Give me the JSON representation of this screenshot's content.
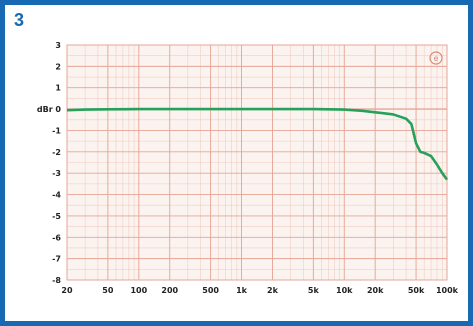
{
  "figure_number": "3",
  "colors": {
    "frame": "#1769b3",
    "plot_bg": "#fbf3ef",
    "grid_major": "#e6a595",
    "grid_minor": "#f1cdc3",
    "curve": "#26a05a"
  },
  "icon": "circled-logo-icon",
  "chart_data": {
    "type": "line",
    "title": "",
    "xlabel": "",
    "ylabel": "",
    "xscale": "log",
    "xlim": [
      20,
      100000
    ],
    "ylim": [
      -8,
      3
    ],
    "grid": true,
    "x_ticks": [
      20,
      50,
      100,
      200,
      500,
      1000,
      2000,
      5000,
      10000,
      20000,
      50000,
      100000
    ],
    "x_tick_labels": [
      "20",
      "50",
      "100",
      "200",
      "500",
      "1k",
      "2k",
      "5k",
      "10k",
      "20k",
      "50k",
      "100k"
    ],
    "y_ticks": [
      3,
      2,
      1,
      0,
      -1,
      -2,
      -3,
      -4,
      -5,
      -6,
      -7,
      -8
    ],
    "y_tick_labels": [
      "3",
      "2",
      "1",
      "dBr 0",
      "-1",
      "-2",
      "-3",
      "-4",
      "-5",
      "-6",
      "-7",
      "-8"
    ],
    "series": [
      {
        "x": [
          20,
          30,
          50,
          100,
          200,
          500,
          1000,
          2000,
          5000,
          10000,
          15000,
          20000,
          30000,
          40000,
          45000,
          50000,
          55000,
          60000,
          70000,
          80000,
          90000,
          100000
        ],
        "y": [
          -0.05,
          -0.02,
          -0.01,
          0,
          0,
          0,
          0,
          0,
          0,
          -0.02,
          -0.08,
          -0.15,
          -0.25,
          -0.45,
          -0.7,
          -1.6,
          -2.0,
          -2.05,
          -2.2,
          -2.6,
          -3.0,
          -3.3
        ]
      }
    ]
  }
}
